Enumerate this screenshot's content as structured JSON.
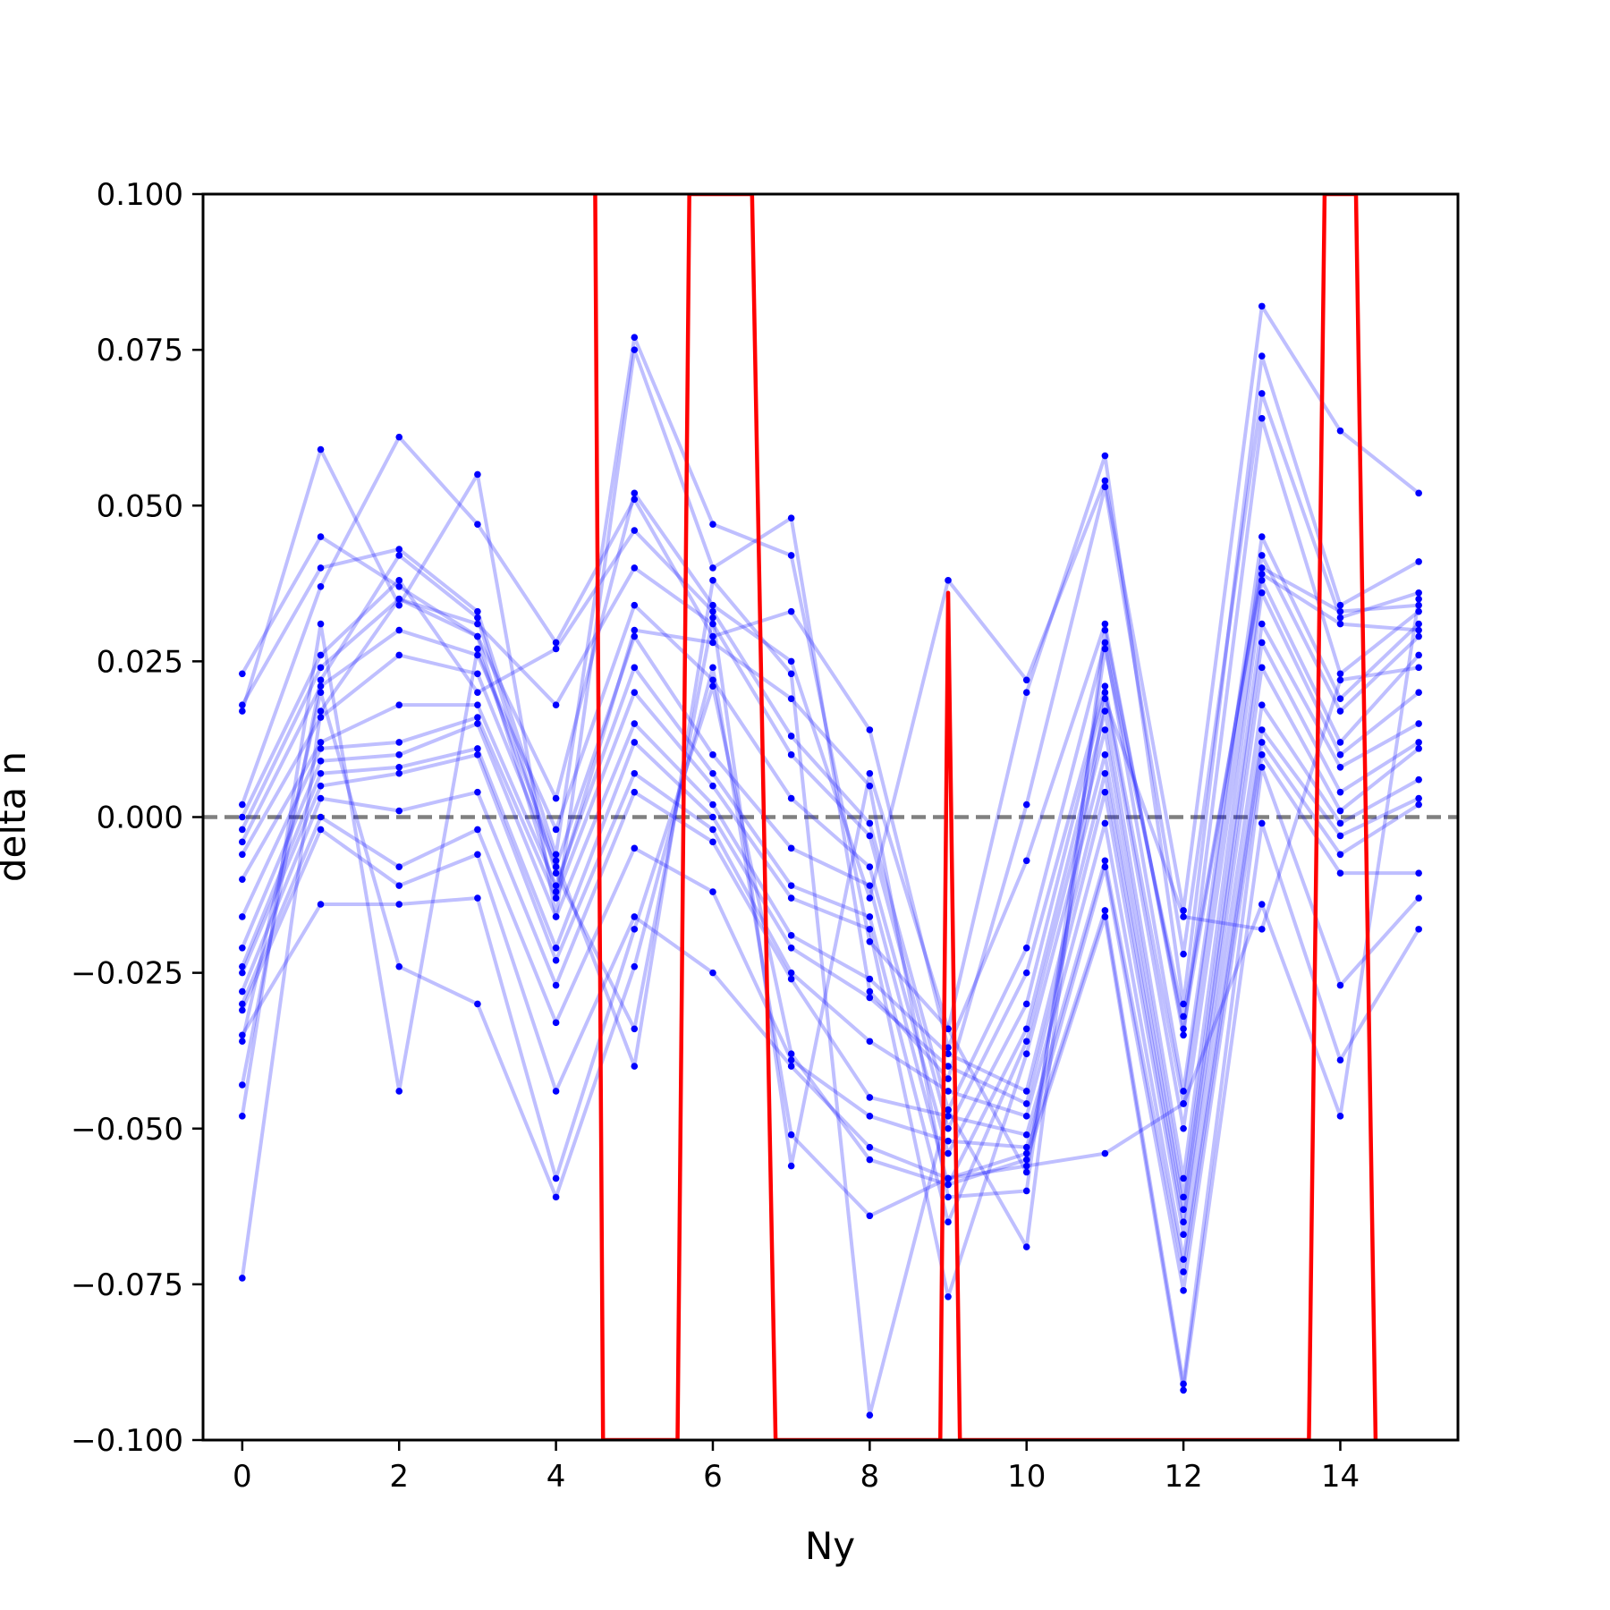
{
  "chart_data": {
    "type": "line",
    "title": "",
    "xlabel": "Ny",
    "ylabel": "delta n",
    "xlim": [
      -0.5,
      15.5
    ],
    "ylim": [
      -0.1,
      0.1
    ],
    "x_ticks": [
      0,
      2,
      4,
      6,
      8,
      10,
      12,
      14
    ],
    "x_tick_labels": [
      "0",
      "2",
      "4",
      "6",
      "8",
      "10",
      "12",
      "14"
    ],
    "y_ticks": [
      -0.1,
      -0.075,
      -0.05,
      -0.025,
      0.0,
      0.025,
      0.05,
      0.075,
      0.1
    ],
    "y_tick_labels": [
      "−0.100",
      "−0.075",
      "−0.050",
      "−0.025",
      "0.000",
      "0.025",
      "0.050",
      "0.075",
      "0.100"
    ],
    "grid": false,
    "legend": "none",
    "reference_line": {
      "y": 0.0,
      "style": "dashed",
      "color": "#808080"
    },
    "thin_series_color": "#0000ff",
    "mean_series_color": "#ff0000",
    "x": [
      0,
      1,
      2,
      3,
      4,
      5,
      6,
      7,
      8,
      9,
      10,
      11,
      12,
      13,
      14,
      15
    ],
    "series": [
      {
        "values": [
          0.023,
          0.045,
          0.037,
          0.029,
          0.003,
          0.052,
          0.034,
          0.025,
          -0.013,
          0.038,
          0.022,
          0.054,
          -0.015,
          0.082,
          0.062,
          0.052
        ]
      },
      {
        "values": [
          0.018,
          0.04,
          0.043,
          0.033,
          -0.006,
          0.077,
          0.047,
          0.042,
          -0.02,
          -0.034,
          0.02,
          0.058,
          -0.03,
          0.074,
          0.034,
          0.041
        ]
      },
      {
        "values": [
          0.017,
          0.059,
          0.034,
          0.055,
          -0.016,
          0.075,
          0.04,
          0.048,
          -0.028,
          -0.042,
          0.002,
          0.053,
          -0.022,
          0.068,
          0.032,
          0.036
        ]
      },
      {
        "values": [
          0.002,
          0.037,
          0.061,
          0.047,
          0.028,
          0.051,
          0.029,
          0.033,
          0.014,
          -0.037,
          -0.007,
          0.031,
          -0.035,
          0.064,
          0.023,
          0.033
        ]
      },
      {
        "values": [
          0.0,
          0.026,
          0.038,
          0.02,
          0.027,
          0.046,
          0.033,
          0.013,
          -0.001,
          -0.047,
          -0.021,
          0.028,
          -0.044,
          0.045,
          0.019,
          0.031
        ]
      },
      {
        "values": [
          -0.002,
          0.024,
          0.035,
          0.031,
          0.018,
          0.04,
          0.031,
          0.01,
          -0.003,
          -0.05,
          -0.025,
          0.021,
          -0.046,
          0.042,
          0.017,
          0.029
        ]
      },
      {
        "values": [
          -0.004,
          0.021,
          0.03,
          0.026,
          -0.002,
          0.034,
          0.022,
          0.003,
          -0.008,
          -0.054,
          -0.03,
          0.02,
          -0.05,
          0.038,
          0.012,
          0.026
        ]
      },
      {
        "values": [
          -0.006,
          0.016,
          0.026,
          0.023,
          -0.008,
          0.029,
          0.01,
          -0.005,
          -0.011,
          -0.059,
          -0.034,
          0.017,
          -0.058,
          0.036,
          0.01,
          0.02
        ]
      },
      {
        "values": [
          -0.01,
          0.012,
          0.018,
          0.018,
          -0.011,
          0.024,
          0.007,
          -0.011,
          -0.016,
          -0.065,
          -0.036,
          0.014,
          -0.061,
          0.031,
          0.008,
          0.015
        ]
      },
      {
        "values": [
          -0.016,
          0.011,
          0.012,
          0.016,
          -0.013,
          0.02,
          0.005,
          -0.013,
          -0.018,
          -0.077,
          -0.038,
          0.01,
          -0.063,
          0.028,
          0.004,
          0.012
        ]
      },
      {
        "values": [
          -0.021,
          0.009,
          0.01,
          0.015,
          -0.016,
          0.015,
          0.002,
          -0.019,
          -0.026,
          -0.038,
          -0.044,
          0.007,
          -0.065,
          0.024,
          0.001,
          0.011
        ]
      },
      {
        "values": [
          -0.024,
          0.007,
          0.008,
          0.011,
          -0.021,
          0.012,
          0.0,
          -0.021,
          -0.029,
          -0.04,
          -0.046,
          0.004,
          -0.067,
          0.018,
          -0.001,
          0.006
        ]
      },
      {
        "values": [
          -0.025,
          0.005,
          0.007,
          0.01,
          -0.023,
          0.007,
          -0.002,
          -0.025,
          -0.036,
          -0.044,
          -0.048,
          -0.001,
          -0.071,
          0.014,
          -0.003,
          0.003
        ]
      },
      {
        "values": [
          -0.028,
          0.003,
          0.001,
          0.004,
          -0.027,
          0.004,
          -0.004,
          -0.026,
          -0.045,
          -0.048,
          -0.051,
          -0.007,
          -0.073,
          0.012,
          -0.006,
          0.002
        ]
      },
      {
        "values": [
          -0.03,
          0.0,
          -0.008,
          -0.002,
          -0.033,
          -0.005,
          -0.012,
          -0.039,
          -0.048,
          -0.052,
          -0.053,
          -0.008,
          -0.076,
          0.01,
          -0.009,
          -0.009
        ]
      },
      {
        "values": [
          -0.031,
          -0.002,
          -0.011,
          -0.006,
          -0.044,
          -0.016,
          -0.025,
          -0.04,
          -0.053,
          -0.058,
          -0.054,
          -0.015,
          -0.091,
          0.008,
          -0.027,
          -0.013
        ]
      },
      {
        "values": [
          -0.035,
          -0.014,
          -0.014,
          -0.013,
          -0.058,
          -0.018,
          0.021,
          -0.038,
          -0.055,
          -0.059,
          -0.055,
          -0.016,
          -0.092,
          -0.001,
          -0.039,
          -0.018
        ]
      },
      {
        "values": [
          -0.036,
          0.02,
          -0.024,
          -0.03,
          -0.061,
          -0.024,
          0.024,
          -0.051,
          -0.064,
          -0.058,
          -0.056,
          -0.054,
          -0.046,
          -0.014,
          -0.048,
          0.035
        ]
      },
      {
        "values": [
          -0.043,
          0.022,
          0.042,
          0.032,
          -0.009,
          -0.034,
          0.032,
          -0.056,
          0.007,
          -0.034,
          -0.057,
          0.019,
          -0.016,
          -0.018,
          0.022,
          0.024
        ]
      },
      {
        "values": [
          -0.048,
          0.031,
          -0.044,
          0.027,
          -0.007,
          -0.04,
          0.038,
          0.023,
          -0.096,
          -0.047,
          -0.069,
          0.03,
          -0.034,
          0.04,
          0.033,
          0.034
        ]
      },
      {
        "values": [
          -0.074,
          0.017,
          0.035,
          0.029,
          -0.012,
          0.03,
          0.028,
          0.019,
          0.005,
          -0.061,
          -0.06,
          0.027,
          -0.032,
          0.039,
          0.031,
          0.03
        ]
      }
    ],
    "mean_line": {
      "x": [
        4.5,
        4.6,
        5.55,
        5.7,
        6.5,
        6.8,
        8.9,
        9.0,
        9.15,
        13.6,
        13.8,
        14.2,
        14.45
      ],
      "y": [
        0.1,
        -0.1,
        -0.1,
        0.1,
        0.1,
        -0.1,
        -0.1,
        0.036,
        -0.1,
        -0.1,
        0.1,
        0.1,
        -0.1
      ]
    }
  }
}
